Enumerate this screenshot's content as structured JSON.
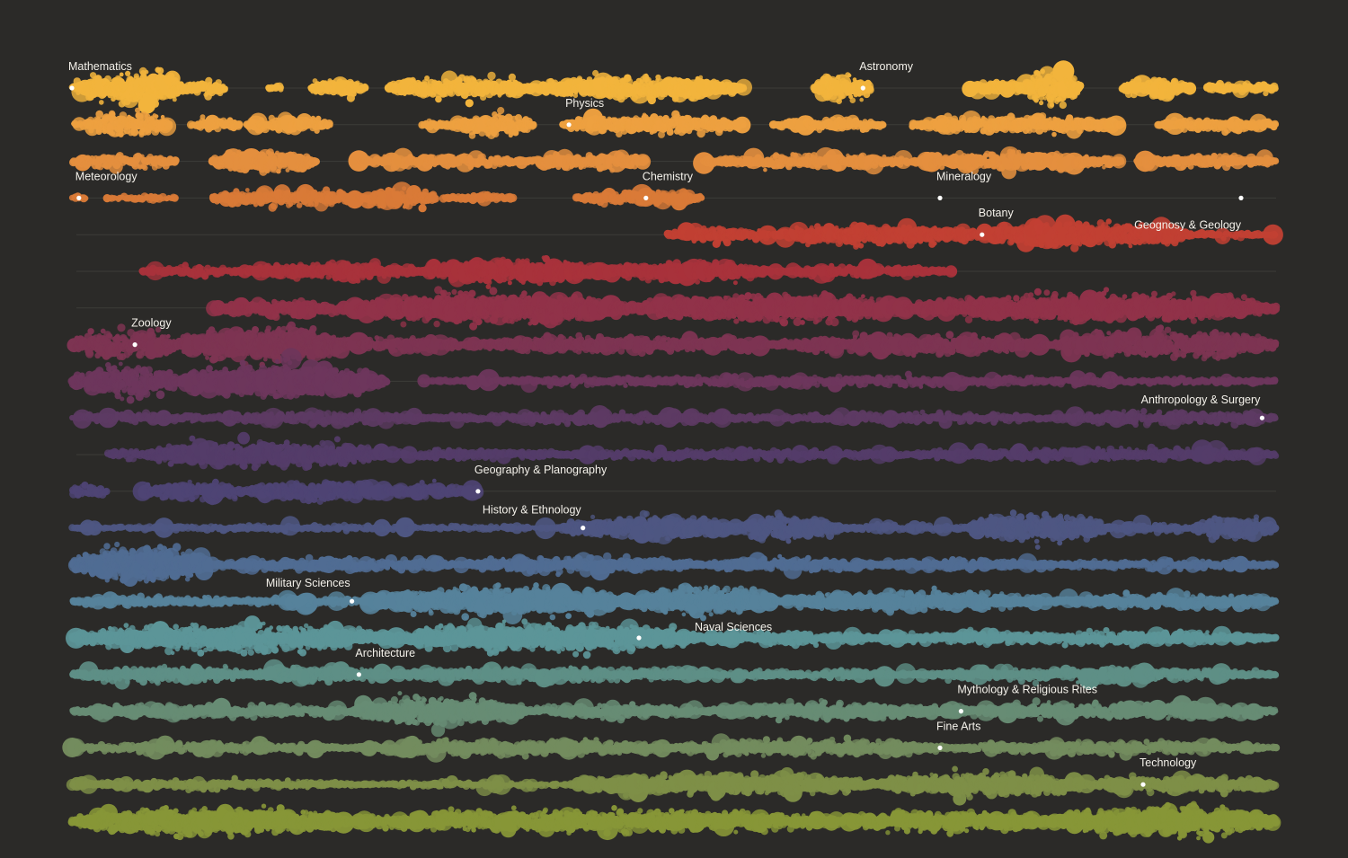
{
  "chart_data": {
    "type": "scatter",
    "title": "",
    "xlabel": "",
    "ylabel": "",
    "grid": false,
    "legend": "none",
    "background": "#2b2a28",
    "rows": [
      {
        "color": "#f2b43c",
        "clusters": [
          [
            0,
            2,
            1.4,
            6,
            0.95
          ],
          [
            2,
            5,
            3.8,
            10,
            0.7
          ],
          [
            4,
            16,
            4.2,
            11,
            0.65
          ],
          [
            16,
            22,
            1.6,
            5,
            0.8
          ],
          [
            28,
            30,
            0.9,
            3,
            0.5
          ],
          [
            34,
            42,
            1.8,
            6,
            0.7
          ],
          [
            45,
            66,
            2.3,
            8,
            0.6
          ],
          [
            66,
            96,
            2.8,
            9,
            0.55
          ],
          [
            106,
            114,
            2.3,
            7,
            0.9
          ],
          [
            128,
            136,
            1.8,
            6,
            0.6
          ],
          [
            136,
            144,
            2.8,
            9,
            0.95
          ],
          [
            150,
            160,
            2.2,
            7,
            0.65
          ],
          [
            162,
            172,
            1.3,
            5,
            0.5
          ]
        ]
      },
      {
        "color": "#eda040",
        "clusters": [
          [
            0,
            2,
            0.6,
            3,
            0.4
          ],
          [
            2,
            14,
            2.4,
            8,
            0.75
          ],
          [
            17,
            24,
            1.4,
            5,
            0.55
          ],
          [
            25,
            37,
            1.8,
            6,
            0.65
          ],
          [
            50,
            56,
            1.0,
            4,
            0.5
          ],
          [
            55,
            66,
            2.4,
            8,
            0.7
          ],
          [
            70,
            96,
            2.2,
            7,
            0.6
          ],
          [
            100,
            116,
            1.4,
            5,
            0.5
          ],
          [
            120,
            150,
            1.8,
            6,
            0.6
          ],
          [
            155,
            172,
            1.4,
            5,
            0.55
          ]
        ]
      },
      {
        "color": "#e48f3e",
        "clusters": [
          [
            0,
            15,
            1.3,
            5,
            0.7
          ],
          [
            20,
            35,
            2.3,
            8,
            0.65
          ],
          [
            40,
            65,
            1.2,
            5,
            0.55
          ],
          [
            65,
            82,
            1.7,
            6,
            0.6
          ],
          [
            90,
            120,
            1.5,
            5,
            0.6
          ],
          [
            120,
            150,
            1.9,
            6,
            0.65
          ],
          [
            152,
            172,
            1.4,
            5,
            0.55
          ]
        ]
      },
      {
        "color": "#d97a37",
        "clusters": [
          [
            0,
            2,
            0.6,
            3,
            0.5
          ],
          [
            5,
            15,
            0.6,
            3,
            0.4
          ],
          [
            20,
            42,
            1.6,
            6,
            0.7
          ],
          [
            42,
            52,
            2.0,
            8,
            0.6
          ],
          [
            53,
            63,
            1.0,
            4,
            0.5
          ],
          [
            72,
            90,
            1.5,
            5,
            0.6
          ]
        ]
      },
      {
        "color": "#c14033",
        "clusters": [
          [
            85,
            100,
            1.6,
            5,
            0.6
          ],
          [
            100,
            130,
            2.4,
            7,
            0.6
          ],
          [
            130,
            160,
            3.0,
            9,
            0.6
          ],
          [
            160,
            172,
            0.6,
            3,
            0.4
          ]
        ]
      },
      {
        "color": "#a8323b",
        "clusters": [
          [
            10,
            25,
            0.9,
            4,
            0.55
          ],
          [
            25,
            50,
            1.9,
            6,
            0.6
          ],
          [
            50,
            76,
            3.2,
            9,
            0.6
          ],
          [
            76,
            100,
            2.5,
            8,
            0.55
          ],
          [
            100,
            126,
            1.2,
            5,
            0.5
          ]
        ]
      },
      {
        "color": "#913249",
        "clusters": [
          [
            20,
            40,
            1.5,
            6,
            0.6
          ],
          [
            40,
            80,
            4.6,
            11,
            0.6
          ],
          [
            80,
            120,
            4.2,
            10,
            0.6
          ],
          [
            120,
            172,
            3.6,
            10,
            0.6
          ]
        ]
      },
      {
        "color": "#7d3452",
        "clusters": [
          [
            0,
            15,
            2.6,
            9,
            0.7
          ],
          [
            15,
            40,
            4.6,
            12,
            0.65
          ],
          [
            40,
            56,
            1.6,
            6,
            0.55
          ],
          [
            56,
            100,
            1.8,
            6,
            0.6
          ],
          [
            100,
            140,
            2.0,
            7,
            0.6
          ],
          [
            140,
            172,
            2.4,
            9,
            0.7
          ]
        ]
      },
      {
        "color": "#6d365c",
        "clusters": [
          [
            0,
            15,
            2.6,
            10,
            0.8
          ],
          [
            15,
            45,
            4.0,
            12,
            0.6
          ],
          [
            50,
            172,
            0.7,
            4,
            0.55
          ]
        ]
      },
      {
        "color": "#5d3a63",
        "clusters": [
          [
            0,
            20,
            0.8,
            4,
            0.6
          ],
          [
            20,
            50,
            1.2,
            5,
            0.6
          ],
          [
            50,
            100,
            0.9,
            4,
            0.6
          ],
          [
            100,
            140,
            0.8,
            4,
            0.6
          ],
          [
            140,
            172,
            1.1,
            5,
            0.65
          ]
        ]
      },
      {
        "color": "#543c69",
        "clusters": [
          [
            5,
            10,
            1.0,
            5,
            0.5
          ],
          [
            10,
            45,
            3.0,
            9,
            0.6
          ],
          [
            45,
            70,
            1.0,
            4,
            0.5
          ],
          [
            70,
            120,
            1.0,
            4,
            0.55
          ],
          [
            120,
            172,
            1.3,
            5,
            0.6
          ]
        ]
      },
      {
        "color": "#4e4474",
        "clusters": [
          [
            0,
            5,
            1.2,
            5,
            0.6
          ],
          [
            10,
            25,
            1.6,
            7,
            0.6
          ],
          [
            25,
            45,
            2.2,
            7,
            0.6
          ],
          [
            45,
            58,
            1.8,
            6,
            0.55
          ]
        ]
      },
      {
        "color": "#4e5682",
        "clusters": [
          [
            0,
            70,
            0.6,
            3,
            0.4
          ],
          [
            70,
            95,
            3.2,
            10,
            0.5
          ],
          [
            95,
            110,
            2.5,
            9,
            0.6
          ],
          [
            110,
            128,
            0.7,
            3,
            0.5
          ],
          [
            128,
            148,
            3.5,
            11,
            0.6
          ],
          [
            148,
            160,
            1.0,
            4,
            0.5
          ],
          [
            160,
            172,
            2.2,
            8,
            0.6
          ]
        ]
      },
      {
        "color": "#506c93",
        "clusters": [
          [
            0,
            20,
            4.2,
            11,
            0.7
          ],
          [
            20,
            55,
            1.2,
            5,
            0.55
          ],
          [
            55,
            90,
            1.4,
            6,
            0.55
          ],
          [
            90,
            115,
            1.5,
            6,
            0.55
          ],
          [
            115,
            140,
            1.2,
            5,
            0.5
          ],
          [
            140,
            172,
            0.9,
            4,
            0.5
          ]
        ]
      },
      {
        "color": "#56829b",
        "clusters": [
          [
            0,
            24,
            1.0,
            4,
            0.55
          ],
          [
            24,
            42,
            0.9,
            4,
            0.5
          ],
          [
            42,
            80,
            3.6,
            10,
            0.6
          ],
          [
            80,
            100,
            3.6,
            11,
            0.6
          ],
          [
            100,
            140,
            2.2,
            7,
            0.6
          ],
          [
            140,
            172,
            1.6,
            6,
            0.55
          ]
        ]
      },
      {
        "color": "#5c9598",
        "clusters": [
          [
            0,
            45,
            2.5,
            8,
            0.8
          ],
          [
            45,
            90,
            3.2,
            10,
            0.6
          ],
          [
            90,
            115,
            1.4,
            5,
            0.55
          ],
          [
            115,
            172,
            1.3,
            5,
            0.6
          ]
        ]
      },
      {
        "color": "#5e8f86",
        "clusters": [
          [
            0,
            25,
            1.7,
            6,
            0.65
          ],
          [
            25,
            45,
            1.7,
            6,
            0.6
          ],
          [
            45,
            90,
            1.5,
            5,
            0.6
          ],
          [
            90,
            120,
            0.9,
            4,
            0.5
          ],
          [
            120,
            172,
            1.3,
            5,
            0.6
          ]
        ]
      },
      {
        "color": "#678c74",
        "clusters": [
          [
            0,
            40,
            1.3,
            5,
            0.6
          ],
          [
            40,
            65,
            3.6,
            10,
            0.6
          ],
          [
            65,
            90,
            1.3,
            5,
            0.55
          ],
          [
            90,
            125,
            1.9,
            6,
            0.6
          ],
          [
            125,
            172,
            1.7,
            6,
            0.6
          ]
        ]
      },
      {
        "color": "#738c5e",
        "clusters": [
          [
            0,
            40,
            1.0,
            4,
            0.6
          ],
          [
            40,
            85,
            1.6,
            6,
            0.6
          ],
          [
            85,
            125,
            1.6,
            6,
            0.6
          ],
          [
            125,
            172,
            1.1,
            5,
            0.55
          ]
        ]
      },
      {
        "color": "#7e8f47",
        "clusters": [
          [
            0,
            40,
            1.0,
            4,
            0.55
          ],
          [
            40,
            72,
            0.6,
            3,
            0.4
          ],
          [
            72,
            115,
            2.3,
            8,
            0.6
          ],
          [
            115,
            145,
            2.8,
            9,
            0.6
          ],
          [
            145,
            172,
            1.6,
            6,
            0.6
          ]
        ]
      },
      {
        "color": "#879637",
        "clusters": [
          [
            0,
            40,
            3.0,
            8,
            0.8
          ],
          [
            40,
            110,
            2.2,
            7,
            0.7
          ],
          [
            110,
            140,
            2.4,
            7,
            0.7
          ],
          [
            140,
            172,
            3.6,
            9,
            0.75
          ]
        ]
      }
    ],
    "annotations": [
      {
        "text": "Mathematics",
        "row": 0,
        "x": 0,
        "placement": "above"
      },
      {
        "text": "Astronomy",
        "row": 0,
        "x": 113,
        "placement": "above"
      },
      {
        "text": "Physics",
        "row": 1,
        "x": 71,
        "placement": "above"
      },
      {
        "text": "Meteorology",
        "row": 3,
        "x": 1,
        "placement": "above"
      },
      {
        "text": "Chemistry",
        "row": 3,
        "x": 82,
        "placement": "above"
      },
      {
        "text": "Mineralogy",
        "row": 3,
        "x": 124,
        "placement": "above"
      },
      {
        "text": "Botany",
        "row": 4,
        "x": 130,
        "placement": "above"
      },
      {
        "text": "Geognosy & Geology",
        "row": 3,
        "x": 167,
        "placement": "below-left"
      },
      {
        "text": "Zoology",
        "row": 7,
        "x": 9,
        "placement": "above"
      },
      {
        "text": "Anthropology & Surgery",
        "row": 9,
        "x": 170,
        "placement": "above-left"
      },
      {
        "text": "Geography & Planography",
        "row": 11,
        "x": 58,
        "placement": "above"
      },
      {
        "text": "History & Ethnology",
        "row": 12,
        "x": 73,
        "placement": "above-left"
      },
      {
        "text": "Military Sciences",
        "row": 14,
        "x": 40,
        "placement": "above-left"
      },
      {
        "text": "Naval Sciences",
        "row": 15,
        "x": 81,
        "placement": "right"
      },
      {
        "text": "Architecture",
        "row": 16,
        "x": 41,
        "placement": "above"
      },
      {
        "text": "Mythology & Religious Rites",
        "row": 17,
        "x": 127,
        "placement": "above"
      },
      {
        "text": "Fine Arts",
        "row": 18,
        "x": 124,
        "placement": "above"
      },
      {
        "text": "Technology",
        "row": 19,
        "x": 153,
        "placement": "above"
      }
    ]
  }
}
